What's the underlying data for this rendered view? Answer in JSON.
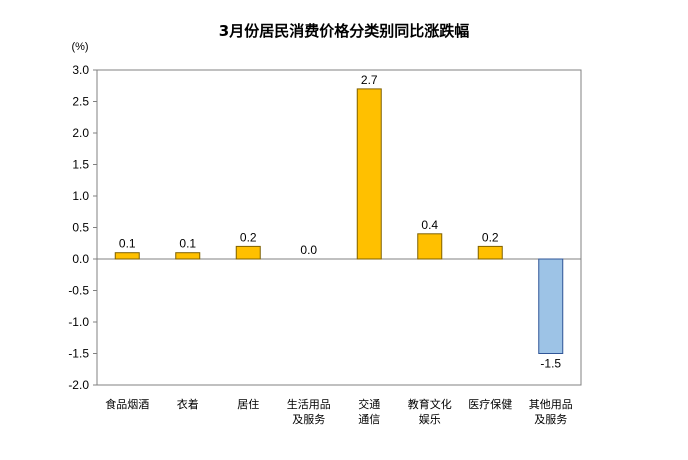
{
  "chart_data": {
    "type": "bar",
    "title": "3月份居民消费价格分类别同比涨跌幅",
    "unit": "(%)",
    "categories": [
      [
        "食品烟酒"
      ],
      [
        "衣着"
      ],
      [
        "居住"
      ],
      [
        "生活用品",
        "及服务"
      ],
      [
        "交通",
        "通信"
      ],
      [
        "教育文化",
        "娱乐"
      ],
      [
        "医疗保健"
      ],
      [
        "其他用品",
        "及服务"
      ]
    ],
    "values": [
      0.1,
      0.1,
      0.2,
      0.0,
      2.7,
      0.4,
      0.2,
      -1.5
    ],
    "value_labels": [
      "0.1",
      "0.1",
      "0.2",
      "0.0",
      "2.7",
      "0.4",
      "0.2",
      "-1.5"
    ],
    "ylim": [
      -2.0,
      3.0
    ],
    "yticks": [
      "3.0",
      "2.5",
      "2.0",
      "1.5",
      "1.0",
      "0.5",
      "0.0",
      "-0.5",
      "-1.0",
      "-1.5",
      "-2.0"
    ],
    "grid": false,
    "colors": {
      "positive_fill": "#FFC000",
      "positive_stroke": "#7F6000",
      "negative_fill": "#9DC3E6",
      "negative_stroke": "#2F5597",
      "axis": "#808080"
    }
  }
}
